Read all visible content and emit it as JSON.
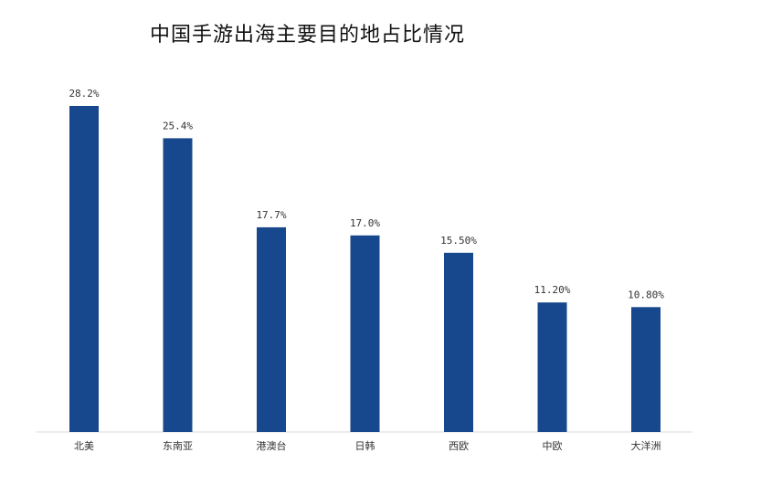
{
  "chart_data": {
    "type": "bar",
    "title": "中国手游出海主要目的地占比情况",
    "categories": [
      "北美",
      "东南亚",
      "港澳台",
      "日韩",
      "西欧",
      "中欧",
      "大洋洲"
    ],
    "values": [
      28.2,
      25.4,
      17.7,
      17.0,
      15.5,
      11.2,
      10.8
    ],
    "data_labels": [
      "28.2%",
      "25.4%",
      "17.7%",
      "17.0%",
      "15.50%",
      "11.20%",
      "10.80%"
    ],
    "xlabel": "",
    "ylabel": "",
    "ylim": [
      0,
      28.2
    ],
    "grid": false,
    "legend": "none",
    "bar_color": "#17478c",
    "axis_color": "#d9d9d9"
  }
}
